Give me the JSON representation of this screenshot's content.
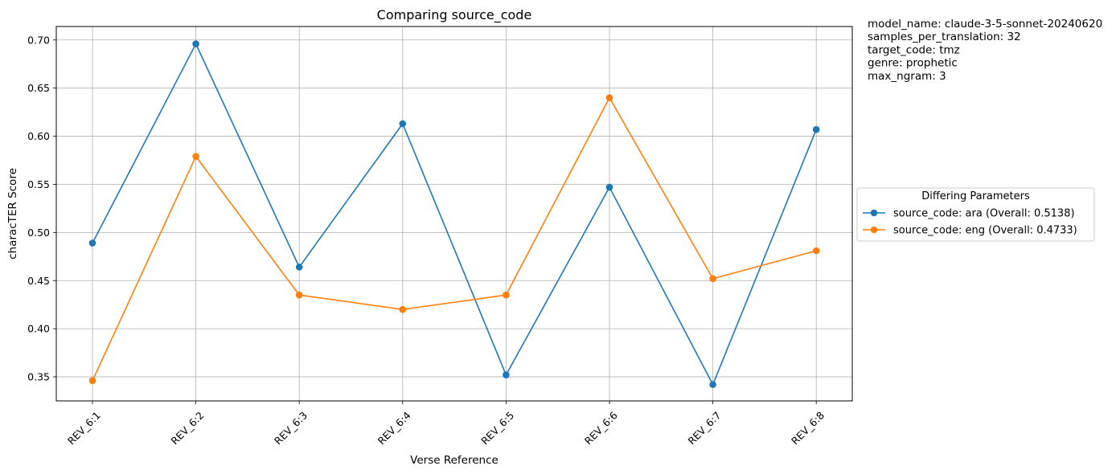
{
  "chart_data": {
    "type": "line",
    "title": "Comparing source_code",
    "xlabel": "Verse Reference",
    "ylabel": "characTER Score",
    "categories": [
      "REV_6:1",
      "REV_6:2",
      "REV_6:3",
      "REV_6:4",
      "REV_6:5",
      "REV_6:6",
      "REV_6:7",
      "REV_6:8"
    ],
    "ylim": [
      0.325,
      0.714
    ],
    "yticks": [
      0.35,
      0.4,
      0.45,
      0.5,
      0.55,
      0.6,
      0.65,
      0.7
    ],
    "ytick_labels": [
      "0.35",
      "0.40",
      "0.45",
      "0.50",
      "0.55",
      "0.60",
      "0.65",
      "0.70"
    ],
    "grid": true,
    "series": [
      {
        "label": "source_code: ara (Overall: 0.5138)",
        "color": "#1f77b4",
        "values": [
          0.489,
          0.696,
          0.464,
          0.613,
          0.352,
          0.547,
          0.342,
          0.607
        ]
      },
      {
        "label": "source_code: eng (Overall: 0.4733)",
        "color": "#ff7f0e",
        "values": [
          0.346,
          0.579,
          0.435,
          0.42,
          0.435,
          0.64,
          0.452,
          0.481
        ]
      }
    ],
    "legend": {
      "title": "Differing Parameters",
      "placement": "right-outside-center"
    },
    "info_lines": [
      "model_name: claude-3-5-sonnet-20240620",
      "samples_per_translation: 32",
      "target_code: tmz",
      "genre: prophetic",
      "max_ngram: 3"
    ]
  }
}
